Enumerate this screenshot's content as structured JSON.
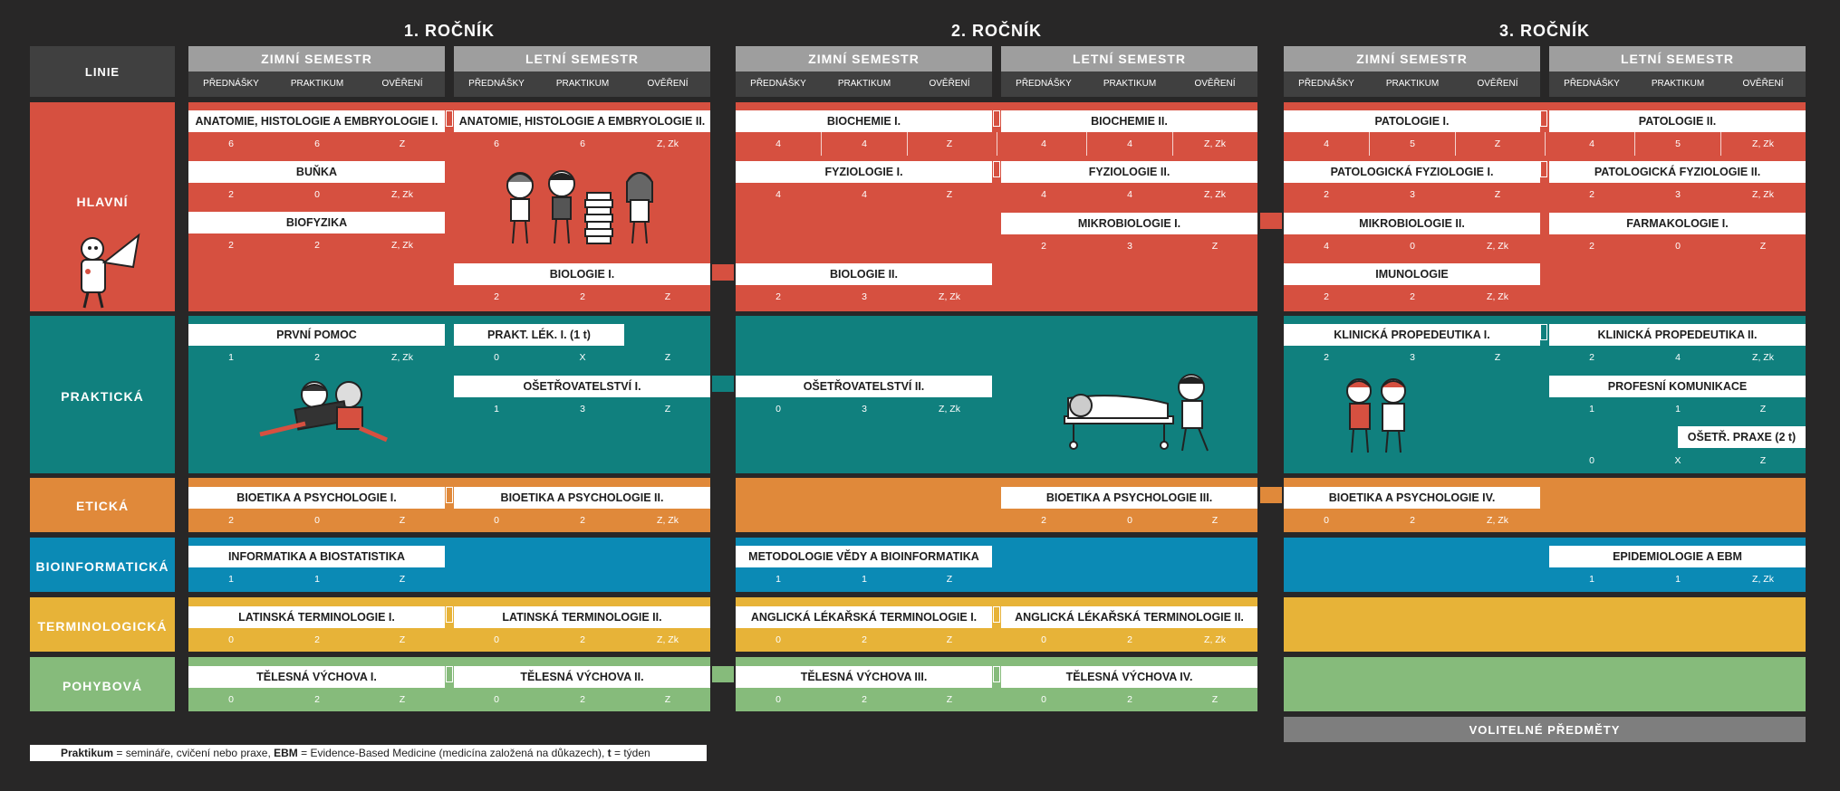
{
  "years": [
    "1. ROČNÍK",
    "2. ROČNÍK",
    "3. ROČNÍK"
  ],
  "semesters": [
    "ZIMNÍ SEMESTR",
    "LETNÍ SEMESTR"
  ],
  "columns": [
    "PŘEDNÁŠKY",
    "PRAKTIKUM",
    "OVĚŘENÍ"
  ],
  "linie_header": "LINIE",
  "lines": {
    "hlavni": "HLAVNÍ",
    "prakticka": "PRAKTICKÁ",
    "eticka": "ETICKÁ",
    "bioinformaticka": "BIOINFORMATICKÁ",
    "terminologicka": "TERMINOLOGICKÁ",
    "pohybova": "POHYBOVÁ"
  },
  "colors": {
    "hlavni": "#d65040",
    "prakticka": "#10807e",
    "eticka": "#e0893a",
    "bioinformaticka": "#0b8ab5",
    "terminologicka": "#e7b338",
    "pohybova": "#86bb7b",
    "background": "#282727"
  },
  "courses": {
    "anatomie1": {
      "name": "ANATOMIE, HISTOLOGIE A EMBRYOLOGIE I.",
      "p": "6",
      "pr": "6",
      "o": "Z"
    },
    "anatomie2": {
      "name": "ANATOMIE, HISTOLOGIE  A EMBRYOLOGIE II.",
      "p": "6",
      "pr": "6",
      "o": "Z, Zk"
    },
    "bunka": {
      "name": "BUŇKA",
      "p": "2",
      "pr": "0",
      "o": "Z, Zk"
    },
    "biofyzika": {
      "name": "BIOFYZIKA",
      "p": "2",
      "pr": "2",
      "o": "Z, Zk"
    },
    "biologie1": {
      "name": "BIOLOGIE I.",
      "p": "2",
      "pr": "2",
      "o": "Z"
    },
    "biochemie1": {
      "name": "BIOCHEMIE I.",
      "p": "4",
      "pr": "4",
      "o": "Z"
    },
    "biochemie2": {
      "name": "BIOCHEMIE II.",
      "p": "4",
      "pr": "4",
      "o": "Z, Zk"
    },
    "fyziologie1": {
      "name": "FYZIOLOGIE I.",
      "p": "4",
      "pr": "4",
      "o": "Z"
    },
    "fyziologie2": {
      "name": "FYZIOLOGIE II.",
      "p": "4",
      "pr": "4",
      "o": "Z, Zk"
    },
    "mikrobiologie1": {
      "name": "MIKROBIOLOGIE I.",
      "p": "2",
      "pr": "3",
      "o": "Z"
    },
    "biologie2": {
      "name": "BIOLOGIE II.",
      "p": "2",
      "pr": "3",
      "o": "Z, Zk"
    },
    "patologie1": {
      "name": "PATOLOGIE I.",
      "p": "4",
      "pr": "5",
      "o": "Z"
    },
    "patologie2": {
      "name": "PATOLOGIE II.",
      "p": "4",
      "pr": "5",
      "o": "Z, Zk"
    },
    "patfyz1": {
      "name": "PATOLOGICKÁ FYZIOLOGIE I.",
      "p": "2",
      "pr": "3",
      "o": "Z"
    },
    "patfyz2": {
      "name": "PATOLOGICKÁ FYZIOLOGIE II.",
      "p": "2",
      "pr": "3",
      "o": "Z, Zk"
    },
    "mikrobiologie2": {
      "name": "MIKROBIOLOGIE II.",
      "p": "4",
      "pr": "0",
      "o": "Z, Zk"
    },
    "farmakologie1": {
      "name": "FARMAKOLOGIE I.",
      "p": "2",
      "pr": "0",
      "o": "Z"
    },
    "imunologie": {
      "name": "IMUNOLOGIE",
      "p": "2",
      "pr": "2",
      "o": "Z, Zk"
    },
    "prvnipomoc": {
      "name": "PRVNÍ POMOC",
      "p": "1",
      "pr": "2",
      "o": "Z, Zk"
    },
    "praktlek": {
      "name": "PRAKT. LÉK. I. (1 t)",
      "p": "0",
      "pr": "X",
      "o": "Z"
    },
    "osetr1": {
      "name": "OŠETŘOVATELSTVÍ I.",
      "p": "1",
      "pr": "3",
      "o": "Z"
    },
    "osetr2": {
      "name": "OŠETŘOVATELSTVÍ II.",
      "p": "0",
      "pr": "3",
      "o": "Z, Zk"
    },
    "klinprop1": {
      "name": "KLINICKÁ PROPEDEUTIKA I.",
      "p": "2",
      "pr": "3",
      "o": "Z"
    },
    "klinprop2": {
      "name": "KLINICKÁ PROPEDEUTIKA II.",
      "p": "2",
      "pr": "4",
      "o": "Z, Zk"
    },
    "profkom": {
      "name": "PROFESNÍ KOMUNIKACE",
      "p": "1",
      "pr": "1",
      "o": "Z"
    },
    "osetrpraxe": {
      "name": "OŠETŘ. PRAXE (2 t)",
      "p": "0",
      "pr": "X",
      "o": "Z"
    },
    "bioetika1": {
      "name": "BIOETIKA A PSYCHOLOGIE I.",
      "p": "2",
      "pr": "0",
      "o": "Z"
    },
    "bioetika2": {
      "name": "BIOETIKA A PSYCHOLOGIE II.",
      "p": "0",
      "pr": "2",
      "o": "Z, Zk"
    },
    "bioetika3": {
      "name": "BIOETIKA A PSYCHOLOGIE III.",
      "p": "2",
      "pr": "0",
      "o": "Z"
    },
    "bioetika4": {
      "name": "BIOETIKA A PSYCHOLOGIE IV.",
      "p": "0",
      "pr": "2",
      "o": "Z, Zk"
    },
    "informatika": {
      "name": "INFORMATIKA A BIOSTATISTIKA",
      "p": "1",
      "pr": "1",
      "o": "Z"
    },
    "metodologie": {
      "name": "METODOLOGIE VĚDY A BIOINFORMATIKA",
      "p": "1",
      "pr": "1",
      "o": "Z"
    },
    "epidemiologie": {
      "name": "EPIDEMIOLOGIE A EBM",
      "p": "1",
      "pr": "1",
      "o": "Z, Zk"
    },
    "lat1": {
      "name": "LATINSKÁ TERMINOLOGIE I.",
      "p": "0",
      "pr": "2",
      "o": "Z"
    },
    "lat2": {
      "name": "LATINSKÁ TERMINOLOGIE II.",
      "p": "0",
      "pr": "2",
      "o": "Z, Zk"
    },
    "ang1": {
      "name": "ANGLICKÁ LÉKAŘSKÁ TERMINOLOGIE I.",
      "p": "0",
      "pr": "2",
      "o": "Z"
    },
    "ang2": {
      "name": "ANGLICKÁ LÉKAŘSKÁ TERMINOLOGIE II.",
      "p": "0",
      "pr": "2",
      "o": "Z, Zk"
    },
    "tv1": {
      "name": "TĚLESNÁ VÝCHOVA I.",
      "p": "0",
      "pr": "2",
      "o": "Z"
    },
    "tv2": {
      "name": "TĚLESNÁ VÝCHOVA II.",
      "p": "0",
      "pr": "2",
      "o": "Z"
    },
    "tv3": {
      "name": "TĚLESNÁ VÝCHOVA III.",
      "p": "0",
      "pr": "2",
      "o": "Z"
    },
    "tv4": {
      "name": "TĚLESNÁ VÝCHOVA IV.",
      "p": "0",
      "pr": "2",
      "o": "Z"
    }
  },
  "volitelne": "VOLITELNÉ PŘEDMĚTY",
  "legend": {
    "praktikum_term": "Praktikum",
    "praktikum_def": " = semináře, cvičení nebo praxe, ",
    "ebm_term": "EBM",
    "ebm_def": " = Evidence-Based Medicine (medicína založená na důkazech), ",
    "t_term": "t",
    "t_def": " = týden"
  }
}
